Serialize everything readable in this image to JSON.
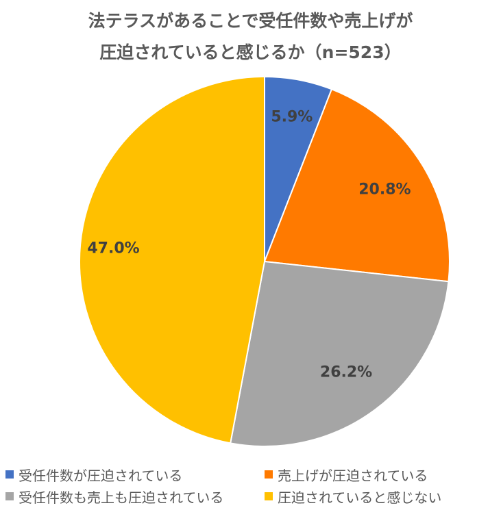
{
  "chart_data": {
    "type": "pie",
    "title_lines": [
      "法テラスがあることで受任件数や売上げが",
      "圧迫されていると感じるか（n=523）"
    ],
    "categories": [
      "受任件数が圧迫されている",
      "売上げが圧迫されている",
      "受任件数も売上も圧迫されている",
      "圧迫されていると感じない"
    ],
    "values": [
      5.9,
      20.8,
      26.2,
      47.0
    ],
    "data_labels": [
      "5.9%",
      "20.8%",
      "26.2%",
      "47.0%"
    ],
    "colors": [
      "#4472C4",
      "#FF7A00",
      "#A5A5A5",
      "#FFC000"
    ],
    "legend_position": "bottom",
    "start": "top",
    "direction": "clockwise"
  }
}
